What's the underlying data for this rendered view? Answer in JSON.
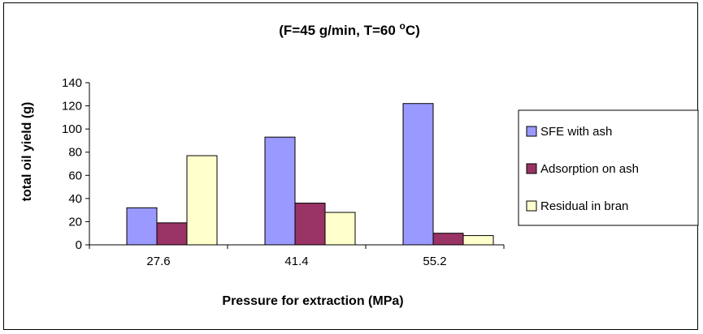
{
  "chart_data": {
    "type": "bar",
    "title": {
      "main": "(F=45 g/min, T=60 ",
      "degree": "o",
      "unit": "C)"
    },
    "xlabel": "Pressure for extraction (MPa)",
    "ylabel": "total oil yield (g)",
    "categories": [
      "27.6",
      "41.4",
      "55.2"
    ],
    "ylim": [
      0,
      140
    ],
    "yticks": [
      0,
      20,
      40,
      60,
      80,
      100,
      120,
      140
    ],
    "grid": false,
    "legend_position": "right",
    "series": [
      {
        "name": "SFE with ash",
        "color": "#9999ff",
        "values": [
          32,
          93,
          122
        ]
      },
      {
        "name": "Adsorption on ash",
        "color": "#993366",
        "values": [
          19,
          36,
          10
        ]
      },
      {
        "name": "Residual in bran",
        "color": "#ffffcc",
        "values": [
          77,
          28,
          8
        ]
      }
    ]
  }
}
